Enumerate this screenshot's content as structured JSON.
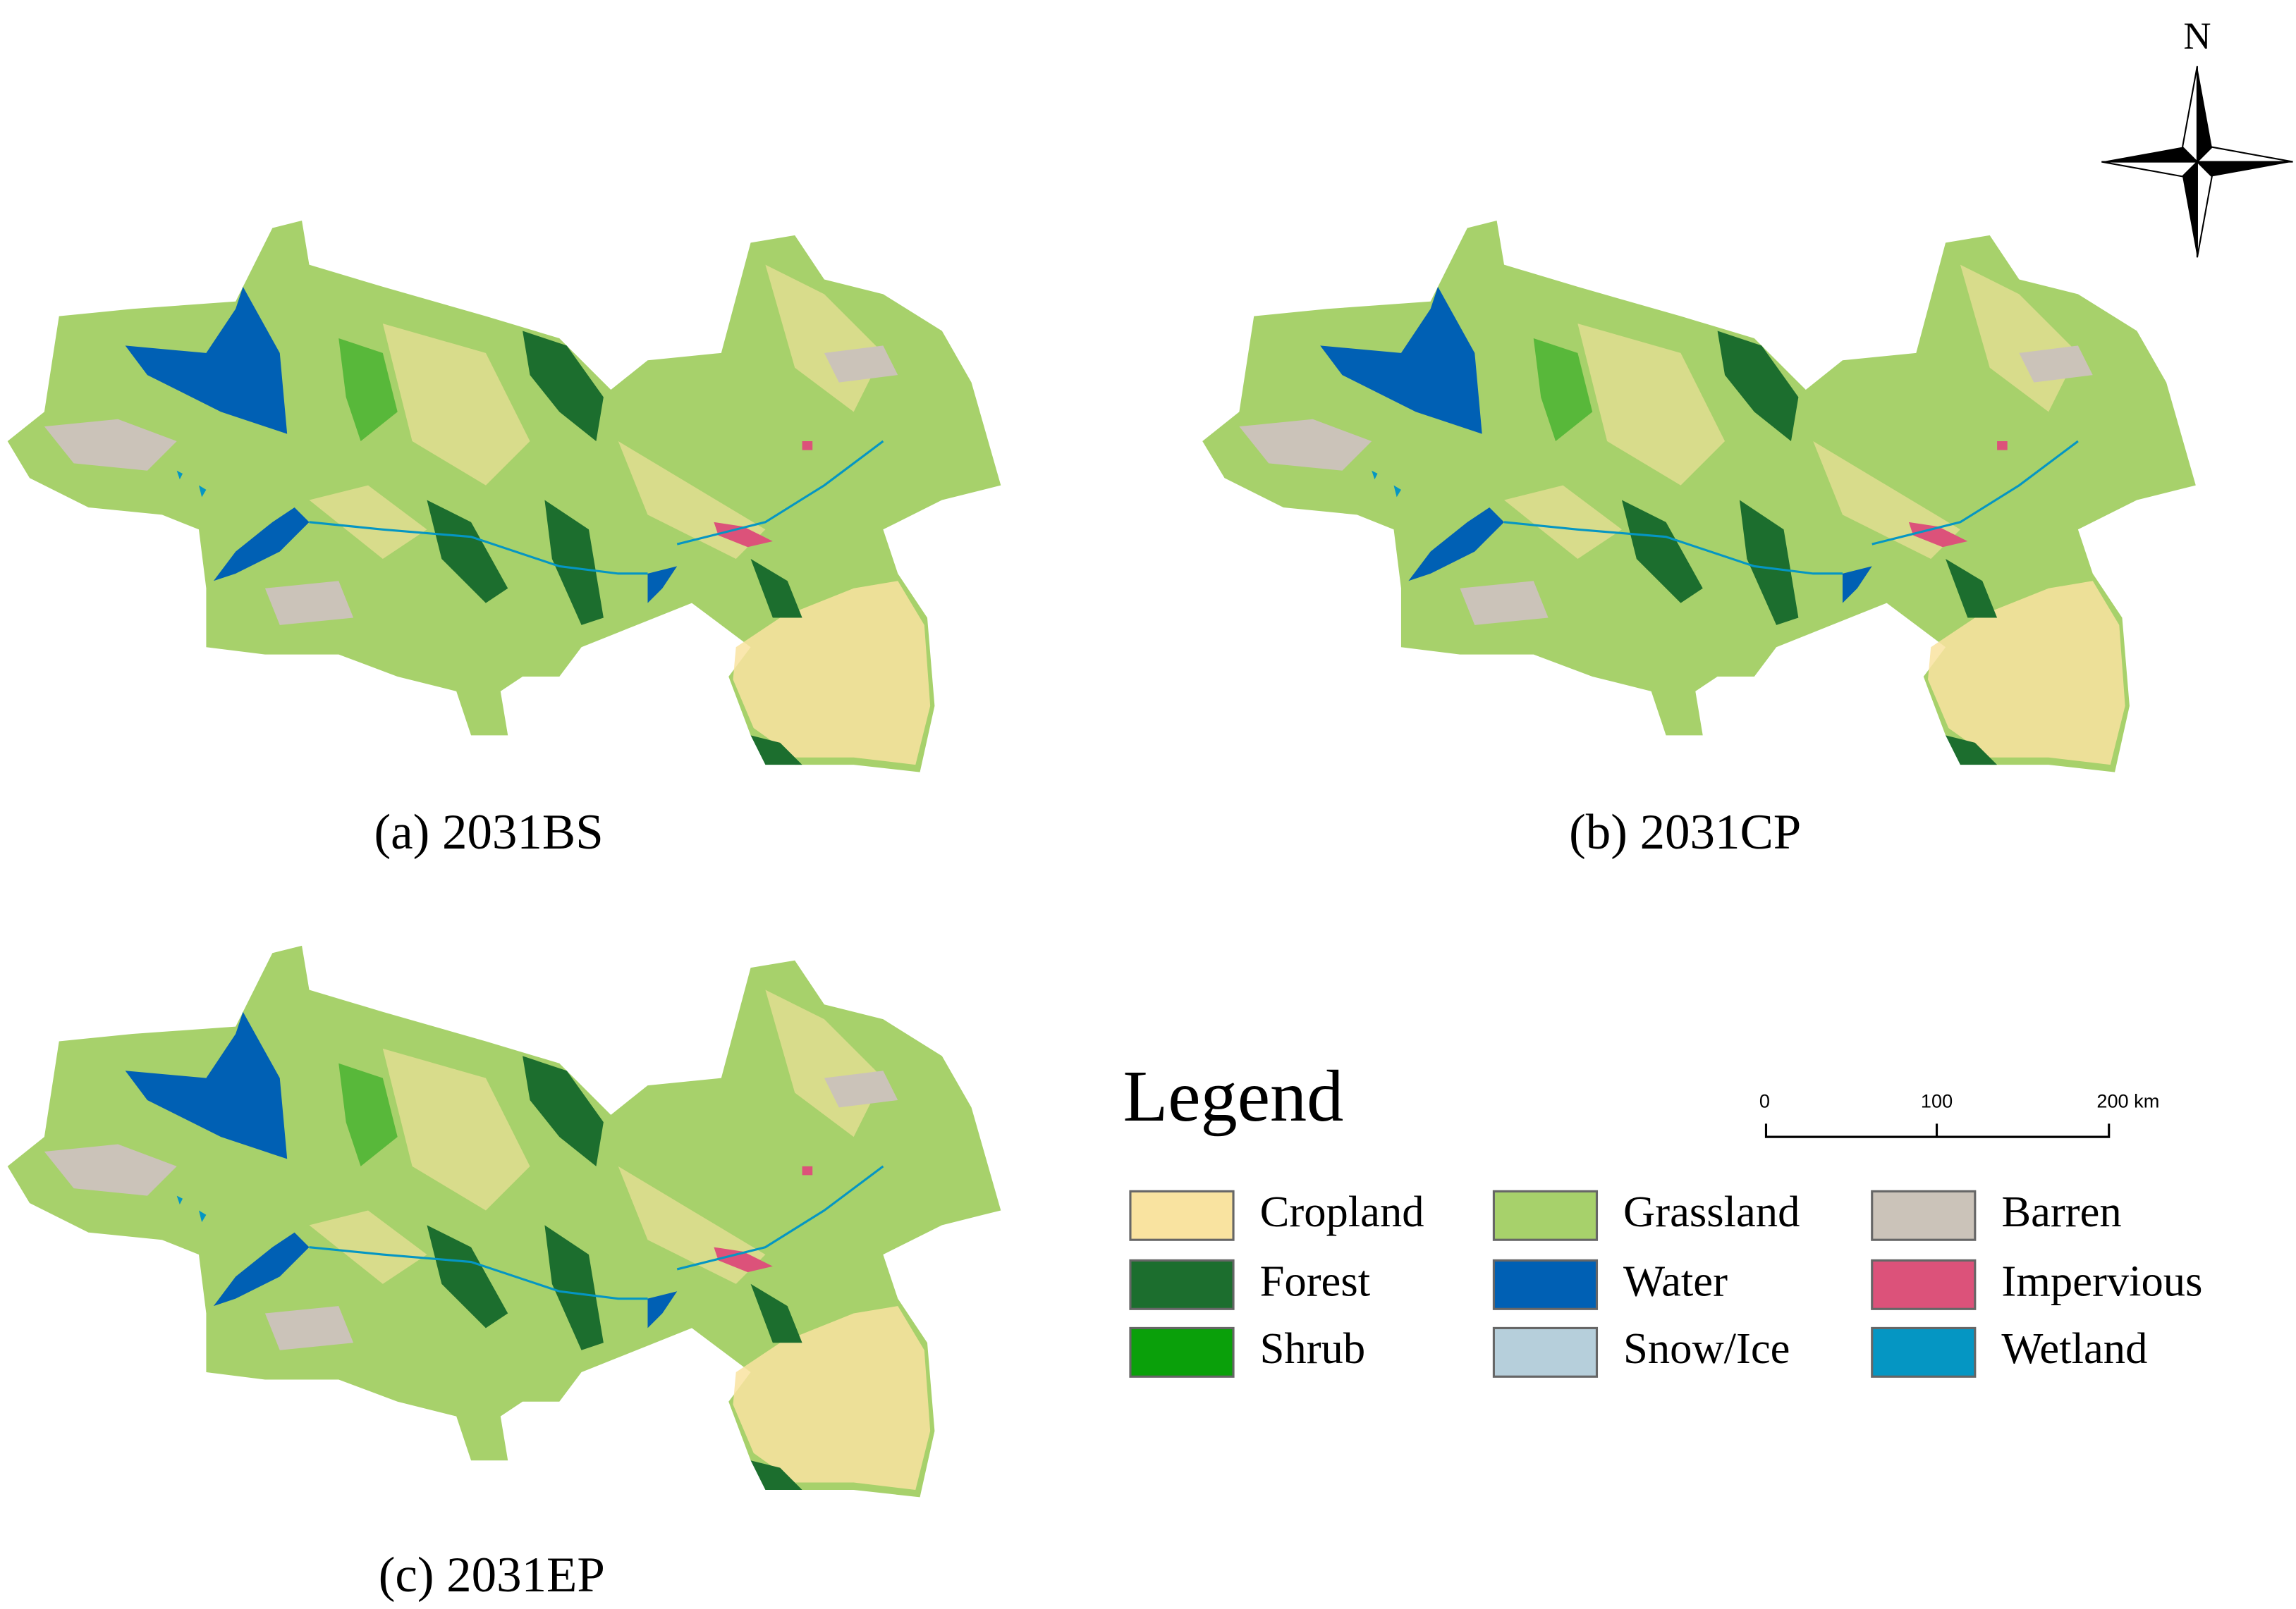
{
  "panels": [
    {
      "caption": "(a) 2031BS"
    },
    {
      "caption": "(b) 2031CP"
    },
    {
      "caption": "(c) 2031EP"
    }
  ],
  "north_arrow": {
    "label": "N"
  },
  "scale_bar": {
    "labels": [
      "0",
      "100",
      "200 km"
    ]
  },
  "legend": {
    "title": "Legend",
    "items": [
      {
        "label": "Cropland",
        "color": "#f9e3a0"
      },
      {
        "label": "Forest",
        "color": "#1c6e2e"
      },
      {
        "label": "Shrub",
        "color": "#0aa00a"
      },
      {
        "label": "Grassland",
        "color": "#a7d16b"
      },
      {
        "label": "Water",
        "color": "#0060b4"
      },
      {
        "label": "Snow/Ice",
        "color": "#b6cfdb"
      },
      {
        "label": "Barren",
        "color": "#cbc3b9"
      },
      {
        "label": "Impervious",
        "color": "#dc527a"
      },
      {
        "label": "Wetland",
        "color": "#0596c3"
      }
    ]
  }
}
